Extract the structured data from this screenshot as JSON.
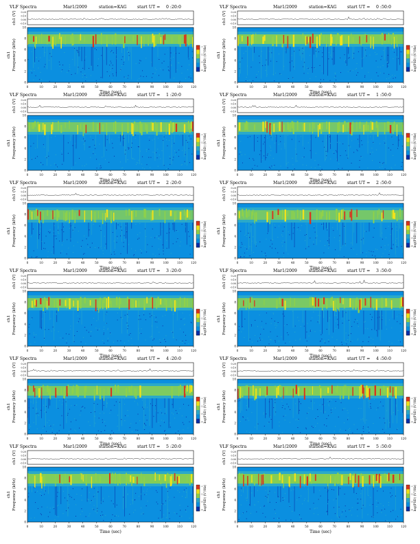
{
  "page": {
    "title_prefix": "VLF Spectra",
    "date": "Mar1/2009",
    "station": "station=KAG",
    "start_label": "start  UT =",
    "amp_label": "ch1 (V)",
    "freq_label_top": "ch1",
    "freq_label": "Frequency  (kHz)",
    "time_label": "Time  (sec)",
    "colorbar_label": "log(PSD) (V²/Hz)",
    "colorbar_ticks": [
      "-1",
      "-2",
      "-3",
      "-4"
    ],
    "amp_ticks": [
      "0.20",
      "0.10",
      "0.00",
      "-0.10"
    ],
    "freq_ticks": [
      "0",
      "2",
      "4",
      "6",
      "8",
      "10"
    ],
    "time_ticks": [
      "0",
      "10",
      "20",
      "30",
      "40",
      "50",
      "60",
      "70",
      "80",
      "90",
      "100",
      "110",
      "120"
    ]
  },
  "colors": {
    "background": "#0b8fe0",
    "band_low": "#2aa9c9",
    "band_mid": "#8fd14a",
    "band_hot": "#f0e21b",
    "band_red": "#d9341d",
    "deep": "#0a2fa8"
  },
  "chart_data": [
    {
      "type": "heatmap",
      "start_time": "0 :20:0",
      "freq_range_khz": [
        0,
        10
      ],
      "time_range_sec": [
        0,
        120
      ],
      "band_strength": 0.75,
      "seed": 11
    },
    {
      "type": "heatmap",
      "start_time": "0 :50:0",
      "freq_range_khz": [
        0,
        10
      ],
      "time_range_sec": [
        0,
        120
      ],
      "band_strength": 0.8,
      "seed": 23
    },
    {
      "type": "heatmap",
      "start_time": "1 :20:0",
      "freq_range_khz": [
        0,
        10
      ],
      "time_range_sec": [
        0,
        120
      ],
      "band_strength": 0.55,
      "seed": 37
    },
    {
      "type": "heatmap",
      "start_time": "1 :50:0",
      "freq_range_khz": [
        0,
        10
      ],
      "time_range_sec": [
        0,
        120
      ],
      "band_strength": 0.5,
      "seed": 41
    },
    {
      "type": "heatmap",
      "start_time": "2 :20:0",
      "freq_range_khz": [
        0,
        10
      ],
      "time_range_sec": [
        0,
        120
      ],
      "band_strength": 0.45,
      "seed": 53
    },
    {
      "type": "heatmap",
      "start_time": "2 :50:0",
      "freq_range_khz": [
        0,
        10
      ],
      "time_range_sec": [
        0,
        120
      ],
      "band_strength": 0.5,
      "seed": 67
    },
    {
      "type": "heatmap",
      "start_time": "3 :20:0",
      "freq_range_khz": [
        0,
        10
      ],
      "time_range_sec": [
        0,
        120
      ],
      "band_strength": 0.65,
      "seed": 71
    },
    {
      "type": "heatmap",
      "start_time": "3 :50:0",
      "freq_range_khz": [
        0,
        10
      ],
      "time_range_sec": [
        0,
        120
      ],
      "band_strength": 0.6,
      "seed": 83
    },
    {
      "type": "heatmap",
      "start_time": "4 :20:0",
      "freq_range_khz": [
        0,
        10
      ],
      "time_range_sec": [
        0,
        120
      ],
      "band_strength": 0.7,
      "seed": 97
    },
    {
      "type": "heatmap",
      "start_time": "4 :50:0",
      "freq_range_khz": [
        0,
        10
      ],
      "time_range_sec": [
        0,
        120
      ],
      "band_strength": 0.8,
      "seed": 101
    },
    {
      "type": "heatmap",
      "start_time": "5 :20:0",
      "freq_range_khz": [
        0,
        10
      ],
      "time_range_sec": [
        0,
        120
      ],
      "band_strength": 0.85,
      "seed": 113
    },
    {
      "type": "heatmap",
      "start_time": "5 :50:0",
      "freq_range_khz": [
        0,
        10
      ],
      "time_range_sec": [
        0,
        120
      ],
      "band_strength": 0.9,
      "seed": 127
    }
  ]
}
